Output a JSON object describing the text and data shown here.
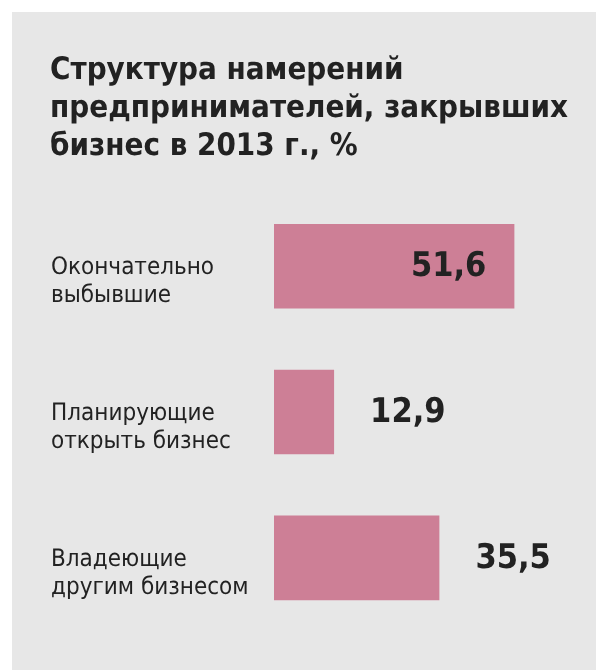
{
  "chart_data": {
    "type": "bar",
    "orientation": "horizontal",
    "title": "Структура намерений предпринимателей, закрывших бизнес в 2013 г., %",
    "categories": [
      "Окончательно выбывшие",
      "Планирующие открыть бизнес",
      "Владеющие другим бизнесом"
    ],
    "values": [
      51.6,
      12.9,
      35.5
    ],
    "value_labels": [
      "51,6",
      "12,9",
      "35,5"
    ],
    "color": "#cd7f96"
  }
}
